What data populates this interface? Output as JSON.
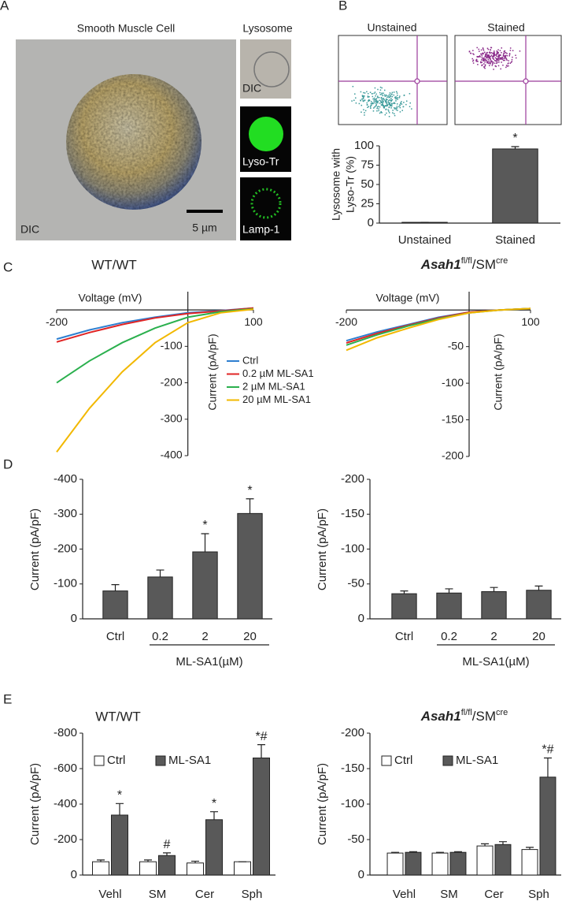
{
  "panel_letters": [
    "A",
    "B",
    "C",
    "D",
    "E"
  ],
  "panel_a": {
    "title": "Smooth  Muscle Cell",
    "image_label": "DIC",
    "scale_bar": "5 µm",
    "side_title": "Lysosome",
    "thumb_labels": [
      "DIC",
      "Lyso-Tr",
      "Lamp-1"
    ]
  },
  "panel_b_flow": {
    "titles": [
      "Unstained",
      "Stained"
    ]
  },
  "chart_data": [
    {
      "type": "bar",
      "categories": [
        "Unstained",
        "Stained"
      ],
      "values": [
        1,
        96
      ],
      "errors": [
        0,
        3
      ],
      "annotations": [
        null,
        "*"
      ],
      "color": "#595959",
      "ylabel": [
        "Lysosome with",
        "Lyso-Tr (%)"
      ],
      "ylim": [
        0,
        100
      ],
      "yticks": [
        0,
        25,
        50,
        75,
        100
      ]
    },
    {
      "type": "line",
      "title": "WT/WT",
      "xlabel": "Voltage (mV)",
      "ylabel": "Current  (pA/pF)",
      "x": [
        -200,
        -150,
        -100,
        -50,
        0,
        50,
        100
      ],
      "series": [
        {
          "name": "Ctrl",
          "color": "#2e7fd0",
          "values": [
            -80,
            -55,
            -35,
            -20,
            -8,
            -2,
            5
          ]
        },
        {
          "name": "0.2 µM  ML-SA1",
          "color": "#e02424",
          "values": [
            -88,
            -62,
            -40,
            -22,
            -10,
            -3,
            5
          ]
        },
        {
          "name": "2 µM   ML-SA1",
          "color": "#2bb04e",
          "values": [
            -200,
            -140,
            -90,
            -50,
            -20,
            -5,
            3
          ]
        },
        {
          "name": "20 µM  ML-SA1",
          "color": "#f2b800",
          "values": [
            -390,
            -270,
            -170,
            -90,
            -35,
            -8,
            2
          ]
        }
      ],
      "xlim": [
        -200,
        100
      ],
      "xticks": [
        -200,
        100
      ],
      "ylim": [
        -400,
        50
      ],
      "yticks": [
        -100,
        -200,
        -300,
        -400
      ]
    },
    {
      "type": "line",
      "title": [
        "Asah1",
        "fl/fl",
        "/SM",
        "cre"
      ],
      "xlabel": "Voltage (mV)",
      "ylabel": "Current  (pA/pF)",
      "x": [
        -200,
        -150,
        -100,
        -50,
        0,
        50,
        100
      ],
      "series": [
        {
          "color": "#2e7fd0",
          "values": [
            -42,
            -30,
            -20,
            -10,
            -3,
            0,
            2
          ]
        },
        {
          "color": "#e02424",
          "values": [
            -45,
            -32,
            -21,
            -11,
            -3,
            0,
            2
          ]
        },
        {
          "color": "#2bb04e",
          "values": [
            -48,
            -34,
            -22,
            -12,
            -4,
            0,
            2
          ]
        },
        {
          "color": "#f2b800",
          "values": [
            -55,
            -38,
            -25,
            -13,
            -4,
            0,
            2
          ]
        }
      ],
      "xlim": [
        -200,
        100
      ],
      "xticks": [
        -200,
        100
      ],
      "ylim": [
        -200,
        25
      ],
      "yticks": [
        -50,
        -100,
        -150,
        -200
      ]
    },
    {
      "type": "bar",
      "categories": [
        "Ctrl",
        "0.2",
        "2",
        "20"
      ],
      "values": [
        -80,
        -120,
        -192,
        -302
      ],
      "errors": [
        18,
        20,
        52,
        42
      ],
      "annotations": [
        null,
        null,
        "*",
        "*"
      ],
      "color": "#595959",
      "group_label": "ML-SA1(µM)",
      "ylabel": "Current (pA/pF)",
      "ylim": [
        0,
        -400
      ],
      "yticks": [
        0,
        -100,
        -200,
        -300,
        -400
      ]
    },
    {
      "type": "bar",
      "categories": [
        "Ctrl",
        "0.2",
        "2",
        "20"
      ],
      "values": [
        -36,
        -37,
        -39,
        -41
      ],
      "errors": [
        4,
        6,
        6,
        6
      ],
      "color": "#595959",
      "group_label": "ML-SA1(µM)",
      "ylabel": "Current (pA/pF)",
      "ylim": [
        0,
        -200
      ],
      "yticks": [
        0,
        -50,
        -100,
        -150,
        -200
      ]
    },
    {
      "type": "bar",
      "title": "WT/WT",
      "categories": [
        "Vehl",
        "SM",
        "Cer",
        "Sph"
      ],
      "ylabel": "Current (pA/pF)",
      "series": [
        {
          "name": "Ctrl",
          "color": "#ffffff",
          "values": [
            -75,
            -75,
            -68,
            -75
          ],
          "errors": [
            10,
            10,
            10,
            0
          ]
        },
        {
          "name": "ML-SA1",
          "color": "#595959",
          "values": [
            -338,
            -110,
            -312,
            -660
          ],
          "errors": [
            65,
            15,
            45,
            75
          ],
          "annotations": [
            "*",
            "#",
            "*",
            "*#"
          ]
        }
      ],
      "ylim": [
        0,
        -800
      ],
      "yticks": [
        0,
        -200,
        -400,
        -600,
        -800
      ]
    },
    {
      "type": "bar",
      "title": [
        "Asah1",
        "fl/fl",
        "/SM",
        "cre"
      ],
      "categories": [
        "Vehl",
        "SM",
        "Cer",
        "Sph"
      ],
      "ylabel": "Current (pA/pF)",
      "series": [
        {
          "name": "Ctrl",
          "color": "#ffffff",
          "values": [
            -31,
            -31,
            -41,
            -36
          ],
          "errors": [
            1,
            1,
            3,
            3
          ]
        },
        {
          "name": "ML-SA1",
          "color": "#595959",
          "values": [
            -32,
            -32,
            -43,
            -138
          ],
          "errors": [
            1,
            1,
            4,
            27
          ],
          "annotations": [
            null,
            null,
            null,
            "*#"
          ]
        }
      ],
      "ylim": [
        0,
        -200
      ],
      "yticks": [
        0,
        -50,
        -100,
        -150,
        -200
      ]
    }
  ]
}
